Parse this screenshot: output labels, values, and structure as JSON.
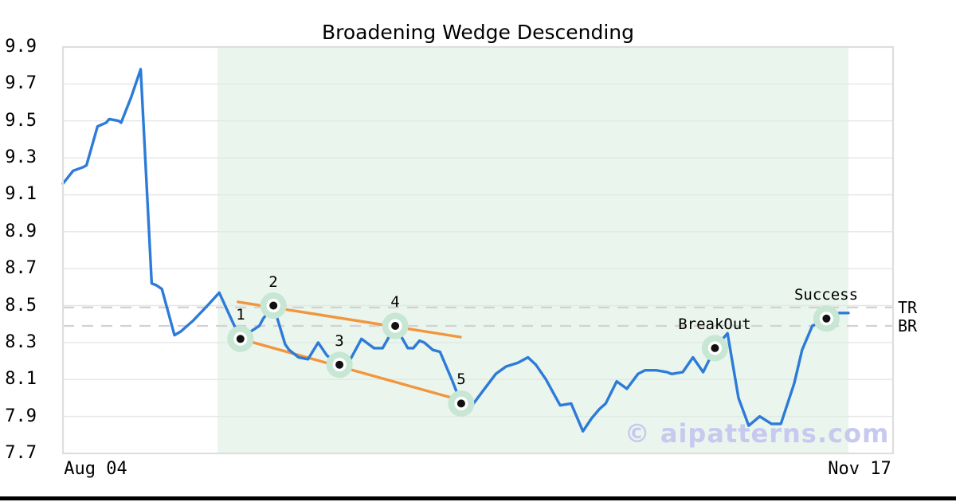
{
  "chart_data": {
    "type": "line",
    "title": "Broadening Wedge Descending",
    "watermark": "© aipatterns.com",
    "x_axis": {
      "tick_labels": [
        {
          "label": "Aug 04",
          "x_pct": 4.2
        },
        {
          "label": "Nov 17",
          "x_pct": 101.4
        }
      ]
    },
    "y_axis": {
      "min": 7.7,
      "max": 9.9,
      "tick_step": 0.2,
      "tick_values": [
        7.7,
        7.9,
        8.1,
        8.3,
        8.5,
        8.7,
        8.9,
        9.1,
        9.3,
        9.5,
        9.7,
        9.9
      ]
    },
    "grid": true,
    "grid_color": "#e6e6e6",
    "series": [
      {
        "name": "price",
        "color": "#2d7bd8",
        "points": [
          [
            0,
            9.16
          ],
          [
            1.3,
            9.23
          ],
          [
            2.6,
            9.25
          ],
          [
            3,
            9.26
          ],
          [
            4.4,
            9.47
          ],
          [
            5.5,
            9.49
          ],
          [
            5.9,
            9.51
          ],
          [
            7.1,
            9.5
          ],
          [
            7.4,
            9.49
          ],
          [
            8.7,
            9.63
          ],
          [
            9.9,
            9.78
          ],
          [
            11.3,
            8.62
          ],
          [
            11.9,
            8.61
          ],
          [
            12.6,
            8.59
          ],
          [
            14.2,
            8.34
          ],
          [
            15,
            8.36
          ],
          [
            16.6,
            8.42
          ],
          [
            18.4,
            8.5
          ],
          [
            19.9,
            8.57
          ],
          [
            21.3,
            8.44
          ],
          [
            22.6,
            8.32
          ],
          [
            23.9,
            8.36
          ],
          [
            25,
            8.39
          ],
          [
            25.5,
            8.43
          ],
          [
            26.8,
            8.5
          ],
          [
            28.3,
            8.29
          ],
          [
            28.8,
            8.26
          ],
          [
            30,
            8.22
          ],
          [
            31.2,
            8.21
          ],
          [
            32.5,
            8.3
          ],
          [
            33.6,
            8.23
          ],
          [
            35.2,
            8.18
          ],
          [
            36.6,
            8.21
          ],
          [
            38,
            8.32
          ],
          [
            39.6,
            8.27
          ],
          [
            40.7,
            8.27
          ],
          [
            42.3,
            8.39
          ],
          [
            43.9,
            8.27
          ],
          [
            44.6,
            8.27
          ],
          [
            45.4,
            8.31
          ],
          [
            46,
            8.3
          ],
          [
            47.1,
            8.26
          ],
          [
            48,
            8.25
          ],
          [
            49.5,
            8.1
          ],
          [
            50.7,
            7.97
          ],
          [
            52.1,
            7.96
          ],
          [
            53.5,
            8.04
          ],
          [
            55.1,
            8.13
          ],
          [
            56.4,
            8.17
          ],
          [
            57.9,
            8.19
          ],
          [
            59.2,
            8.22
          ],
          [
            60.2,
            8.18
          ],
          [
            61.5,
            8.1
          ],
          [
            63.3,
            7.96
          ],
          [
            64.7,
            7.97
          ],
          [
            66.2,
            7.82
          ],
          [
            67.3,
            7.89
          ],
          [
            68.3,
            7.94
          ],
          [
            69.1,
            7.97
          ],
          [
            70.5,
            8.09
          ],
          [
            71.8,
            8.05
          ],
          [
            73.2,
            8.13
          ],
          [
            74.1,
            8.15
          ],
          [
            75.5,
            8.15
          ],
          [
            76.9,
            8.14
          ],
          [
            77.5,
            8.13
          ],
          [
            78.9,
            8.14
          ],
          [
            80.2,
            8.22
          ],
          [
            81.5,
            8.14
          ],
          [
            83,
            8.27
          ],
          [
            84.6,
            8.35
          ],
          [
            86,
            8
          ],
          [
            87.3,
            7.85
          ],
          [
            88.7,
            7.9
          ],
          [
            90.2,
            7.86
          ],
          [
            91.4,
            7.86
          ],
          [
            93.1,
            8.08
          ],
          [
            94.1,
            8.26
          ],
          [
            95.4,
            8.39
          ],
          [
            97.2,
            8.43
          ],
          [
            98.8,
            8.46
          ],
          [
            100,
            8.46
          ]
        ]
      }
    ],
    "pattern_points": [
      {
        "label": "1",
        "x": 22.6,
        "y": 8.32
      },
      {
        "label": "2",
        "x": 26.8,
        "y": 8.5
      },
      {
        "label": "3",
        "x": 35.2,
        "y": 8.18
      },
      {
        "label": "4",
        "x": 42.3,
        "y": 8.39
      },
      {
        "label": "5",
        "x": 50.7,
        "y": 7.97
      },
      {
        "label": "BreakOut",
        "x": 83,
        "y": 8.27
      },
      {
        "label": "Success",
        "x": 97.2,
        "y": 8.43
      }
    ],
    "trendlines": [
      {
        "name": "upper-wedge-line",
        "from": [
          22.3,
          8.52
        ],
        "to": [
          50.6,
          8.33
        ],
        "color": "#f2953c"
      },
      {
        "name": "lower-wedge-line",
        "from": [
          22.6,
          8.32
        ],
        "to": [
          51.3,
          7.98
        ],
        "color": "#f2953c"
      }
    ],
    "hlines": [
      {
        "label": "TR",
        "value": 8.49
      },
      {
        "label": "BR",
        "value": 8.39
      }
    ],
    "shaded_region": {
      "x_start_pct": 19.7,
      "x_end_pct": 100,
      "color": "#d8ecdf"
    },
    "marker_style": {
      "outer_color": "#c7e6d3",
      "ring_color": "#ffffff",
      "dot_color": "#111111"
    },
    "dashed_line_color": "#d2d2d2",
    "border_color": "#dedede"
  }
}
